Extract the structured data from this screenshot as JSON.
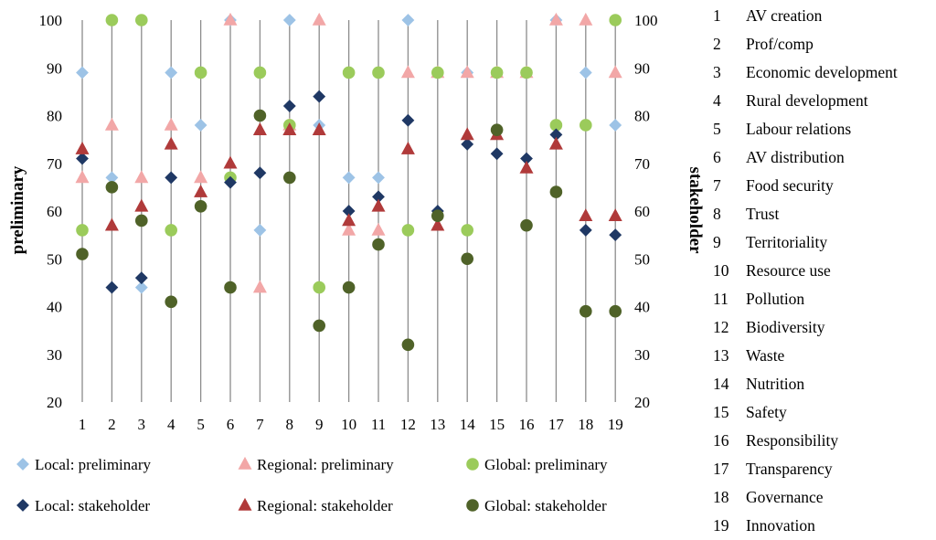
{
  "chart_data": {
    "type": "scatter",
    "title": "",
    "ylabel_left": "preliminary",
    "ylabel_right": "stakeholder",
    "ylim": [
      20,
      100
    ],
    "yticks": [
      20,
      30,
      40,
      50,
      60,
      70,
      80,
      90,
      100
    ],
    "x": [
      1,
      2,
      3,
      4,
      5,
      6,
      7,
      8,
      9,
      10,
      11,
      12,
      13,
      14,
      15,
      16,
      17,
      18,
      19
    ],
    "series": [
      {
        "name": "Local: preliminary",
        "color": "#9DC3E6",
        "marker": "diamond",
        "values": [
          89,
          67,
          44,
          89,
          78,
          100,
          56,
          100,
          78,
          67,
          67,
          100,
          89,
          89,
          89,
          89,
          100,
          89,
          78
        ]
      },
      {
        "name": "Regional: preliminary",
        "color": "#F2A7A7",
        "marker": "triangle",
        "values": [
          67,
          78,
          67,
          78,
          67,
          100,
          44,
          78,
          100,
          56,
          56,
          89,
          89,
          89,
          89,
          89,
          100,
          100,
          89
        ]
      },
      {
        "name": "Global: preliminary",
        "color": "#9BCB5B",
        "marker": "circle",
        "values": [
          56,
          100,
          100,
          56,
          89,
          67,
          89,
          78,
          44,
          89,
          89,
          56,
          89,
          56,
          89,
          89,
          78,
          78,
          100
        ]
      },
      {
        "name": "Local: stakeholder",
        "color": "#1F3864",
        "marker": "diamond",
        "values": [
          71,
          44,
          46,
          67,
          null,
          66,
          68,
          82,
          84,
          60,
          63,
          79,
          60,
          74,
          72,
          71,
          76,
          56,
          55
        ]
      },
      {
        "name": "Regional: stakeholder",
        "color": "#B03A3A",
        "marker": "triangle",
        "values": [
          73,
          57,
          61,
          74,
          64,
          70,
          77,
          77,
          77,
          58,
          61,
          73,
          57,
          76,
          76,
          69,
          74,
          59,
          59
        ]
      },
      {
        "name": "Global: stakeholder",
        "color": "#4F6228",
        "marker": "circle",
        "values": [
          51,
          65,
          58,
          41,
          61,
          44,
          80,
          67,
          36,
          44,
          53,
          32,
          59,
          50,
          77,
          57,
          64,
          39,
          39
        ]
      }
    ],
    "legend_position": "bottom",
    "grid": "vertical lines at each x"
  },
  "criteria": [
    {
      "num": "1",
      "label": "AV creation"
    },
    {
      "num": "2",
      "label": "Prof/comp"
    },
    {
      "num": "3",
      "label": "Economic development"
    },
    {
      "num": "4",
      "label": "Rural development"
    },
    {
      "num": "5",
      "label": "Labour relations"
    },
    {
      "num": "6",
      "label": "AV distribution"
    },
    {
      "num": "7",
      "label": "Food security"
    },
    {
      "num": "8",
      "label": "Trust"
    },
    {
      "num": "9",
      "label": "Territoriality"
    },
    {
      "num": "10",
      "label": "Resource use"
    },
    {
      "num": "11",
      "label": "Pollution"
    },
    {
      "num": "12",
      "label": "Biodiversity"
    },
    {
      "num": "13",
      "label": "Waste"
    },
    {
      "num": "14",
      "label": "Nutrition"
    },
    {
      "num": "15",
      "label": "Safety"
    },
    {
      "num": "16",
      "label": "Responsibility"
    },
    {
      "num": "17",
      "label": "Transparency"
    },
    {
      "num": "18",
      "label": "Governance"
    },
    {
      "num": "19",
      "label": "Innovation"
    }
  ]
}
